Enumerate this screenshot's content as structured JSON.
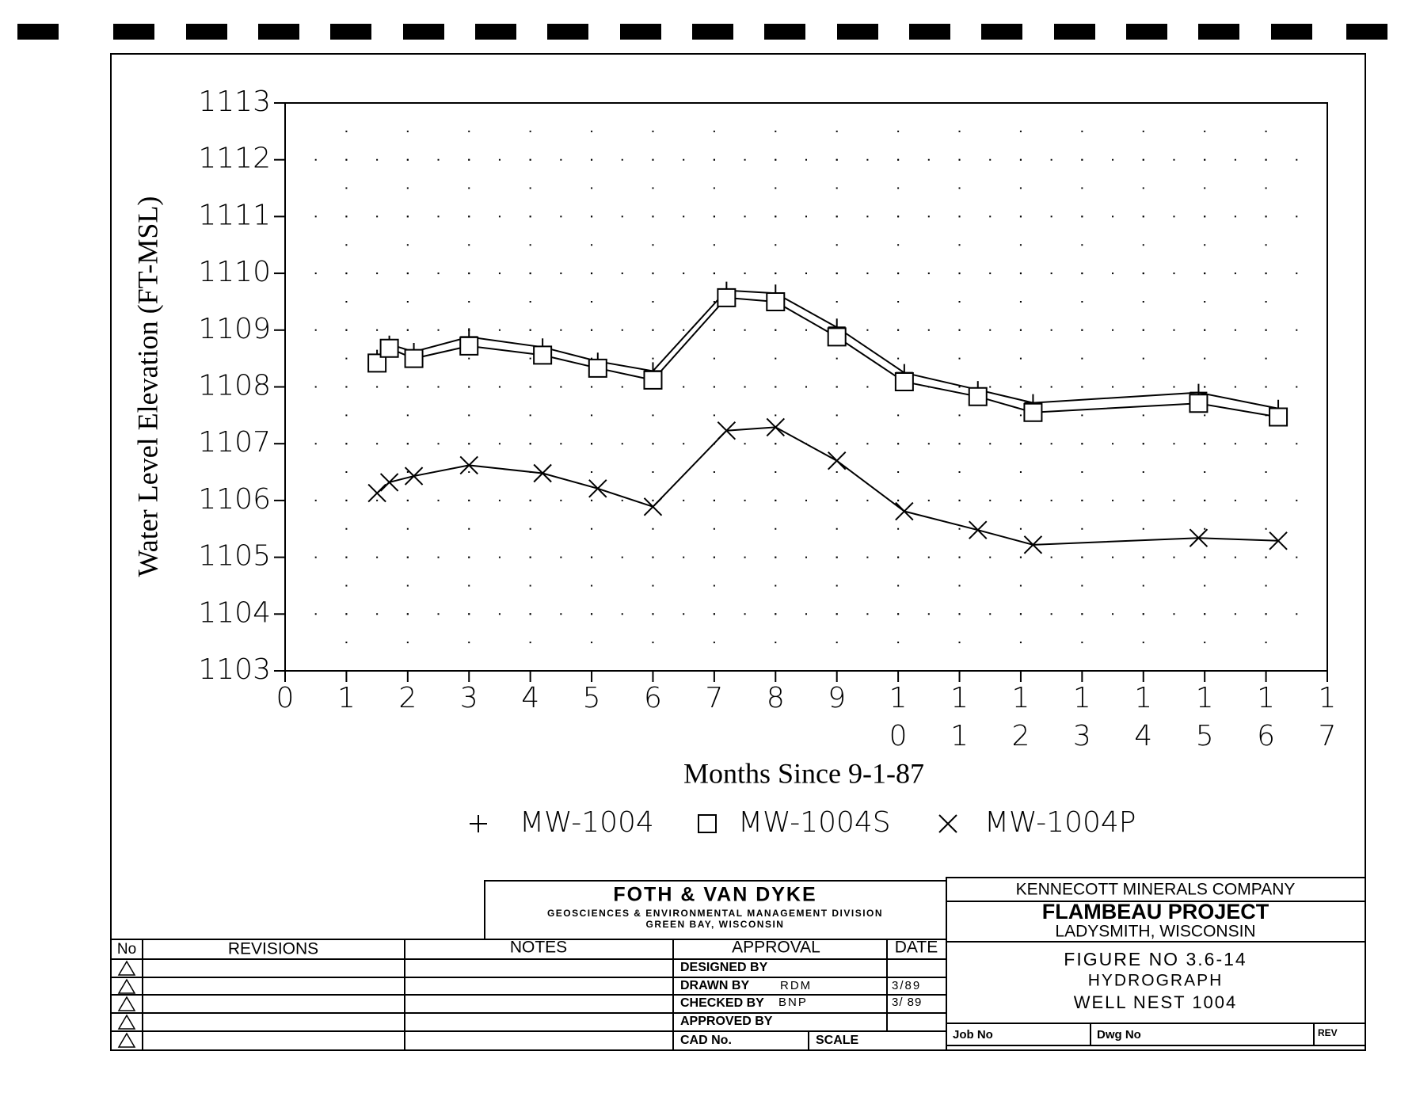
{
  "chart_data": {
    "type": "line",
    "y_label": "Water Level Elevation (FT-MSL)",
    "x_label": "Months Since 9-1-87",
    "x": [
      1.5,
      1.7,
      2.1,
      3.0,
      4.2,
      5.1,
      6.0,
      7.2,
      8.0,
      9.0,
      10.1,
      11.3,
      12.2,
      14.9,
      16.2
    ],
    "series": [
      {
        "name": "MW-1004",
        "marker": "plus",
        "color": "#000000",
        "values": [
          1108.5,
          1108.75,
          1108.62,
          1108.88,
          1108.7,
          1108.45,
          1108.28,
          1109.7,
          1109.65,
          1109.05,
          1108.25,
          1107.95,
          1107.72,
          1107.9,
          1107.62
        ]
      },
      {
        "name": "MW-1004S",
        "marker": "square",
        "color": "#000000",
        "values": [
          1108.42,
          1108.68,
          1108.5,
          1108.72,
          1108.56,
          1108.33,
          1108.12,
          1109.57,
          1109.5,
          1108.88,
          1108.09,
          1107.83,
          1107.55,
          1107.71,
          1107.47
        ]
      },
      {
        "name": "MW-1004P",
        "marker": "x",
        "color": "#000000",
        "values": [
          1106.13,
          1106.32,
          1106.43,
          1106.62,
          1106.48,
          1106.21,
          1105.89,
          1107.23,
          1107.29,
          1106.7,
          1105.81,
          1105.48,
          1105.22,
          1105.34,
          1105.29
        ]
      }
    ],
    "xlim": [
      0,
      17
    ],
    "xticks": [
      0,
      1,
      2,
      3,
      4,
      5,
      6,
      7,
      8,
      9,
      10,
      11,
      12,
      13,
      14,
      15,
      16,
      17
    ],
    "ylim": [
      1103,
      1113
    ],
    "yticks": [
      1103,
      1104,
      1105,
      1106,
      1107,
      1108,
      1109,
      1110,
      1111,
      1112,
      1113
    ],
    "grid": "dotted"
  },
  "title_block": {
    "company": "FOTH & VAN DYKE",
    "division": "GEOSCIENCES & ENVIRONMENTAL MANAGEMENT DIVISION",
    "location": "GREEN BAY, WISCONSIN",
    "client": "KENNECOTT MINERALS COMPANY",
    "project": "FLAMBEAU PROJECT",
    "project_location": "LADYSMITH, WISCONSIN",
    "figure": "FIGURE NO 3.6-14",
    "figure_title": "HYDROGRAPH",
    "figure_subtitle": "WELL NEST 1004",
    "headers": [
      "No",
      "REVISIONS",
      "NOTES",
      "APPROVAL",
      "DATE"
    ],
    "designed_by": "DESIGNED BY",
    "drawn_by": "DRAWN BY",
    "drawn_initials": "RDM",
    "drawn_date": "3/89",
    "checked_by": "CHECKED BY",
    "checked_initials": "BNP",
    "checked_date": "3/ 89",
    "approved_by": "APPROVED BY",
    "cad_no": "CAD No.",
    "scale": "SCALE",
    "job_no": "Job No",
    "dwg_no": "Dwg No",
    "rev": "REV"
  }
}
